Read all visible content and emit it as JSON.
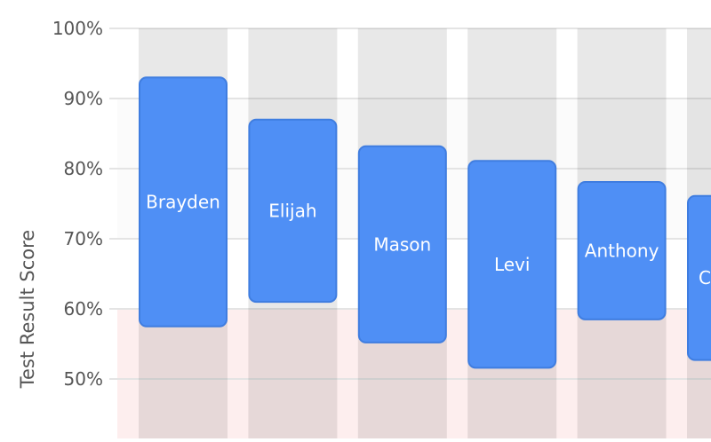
{
  "chart_data": {
    "type": "bar",
    "subtype": "floating-range",
    "title": "",
    "xlabel": "",
    "ylabel": "Test Result Score",
    "ylim": [
      41.6,
      100
    ],
    "yticks": [
      50,
      60,
      70,
      80,
      90,
      100
    ],
    "ytick_labels": [
      "50%",
      "60%",
      "70%",
      "80%",
      "90%",
      "100%"
    ],
    "grid": true,
    "threshold_band": {
      "from": 0,
      "to": 60,
      "color": "#fdeeee"
    },
    "categories": [
      "Brayden",
      "Elijah",
      "Mason",
      "Levi",
      "Anthony",
      "C"
    ],
    "series": [
      {
        "low": [
          57.5,
          61,
          55.2,
          51.6,
          58.5,
          52.7
        ],
        "high": [
          93,
          87,
          83.2,
          81.1,
          78.1,
          76.1
        ]
      }
    ],
    "colors": {
      "bar": "#4f8ff5",
      "bar_border": "#3f7de0",
      "column_bg": "#e5e5e5",
      "text": "#555555",
      "label": "#ffffff"
    }
  }
}
